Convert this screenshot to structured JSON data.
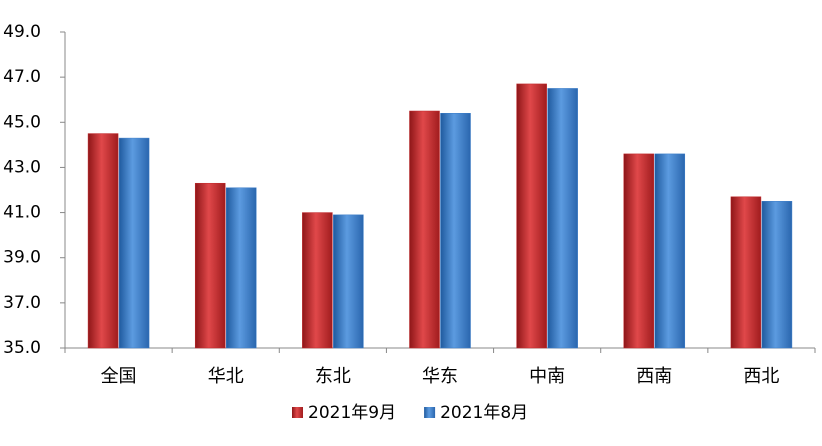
{
  "chart_data": {
    "type": "bar",
    "categories": [
      "全国",
      "华北",
      "东北",
      "华东",
      "中南",
      "西南",
      "西北"
    ],
    "series": [
      {
        "name": "2021年9月",
        "color": "#c0282a",
        "values": [
          44.5,
          42.3,
          41.0,
          45.5,
          46.7,
          43.6,
          41.7
        ]
      },
      {
        "name": "2021年8月",
        "color": "#3a7cc8",
        "values": [
          44.3,
          42.1,
          40.9,
          45.4,
          46.5,
          43.6,
          41.5
        ]
      }
    ],
    "ylim": [
      35,
      49
    ],
    "yticks": [
      {
        "value": 35,
        "label": "35.0"
      },
      {
        "value": 37,
        "label": "37.0"
      },
      {
        "value": 39,
        "label": "39.0"
      },
      {
        "value": 41,
        "label": "41.0"
      },
      {
        "value": 43,
        "label": "43.0"
      },
      {
        "value": 45,
        "label": "45.0"
      },
      {
        "value": 47,
        "label": "47.0"
      },
      {
        "value": 49,
        "label": "49.0"
      }
    ],
    "grid": false,
    "legend": "bottom"
  }
}
